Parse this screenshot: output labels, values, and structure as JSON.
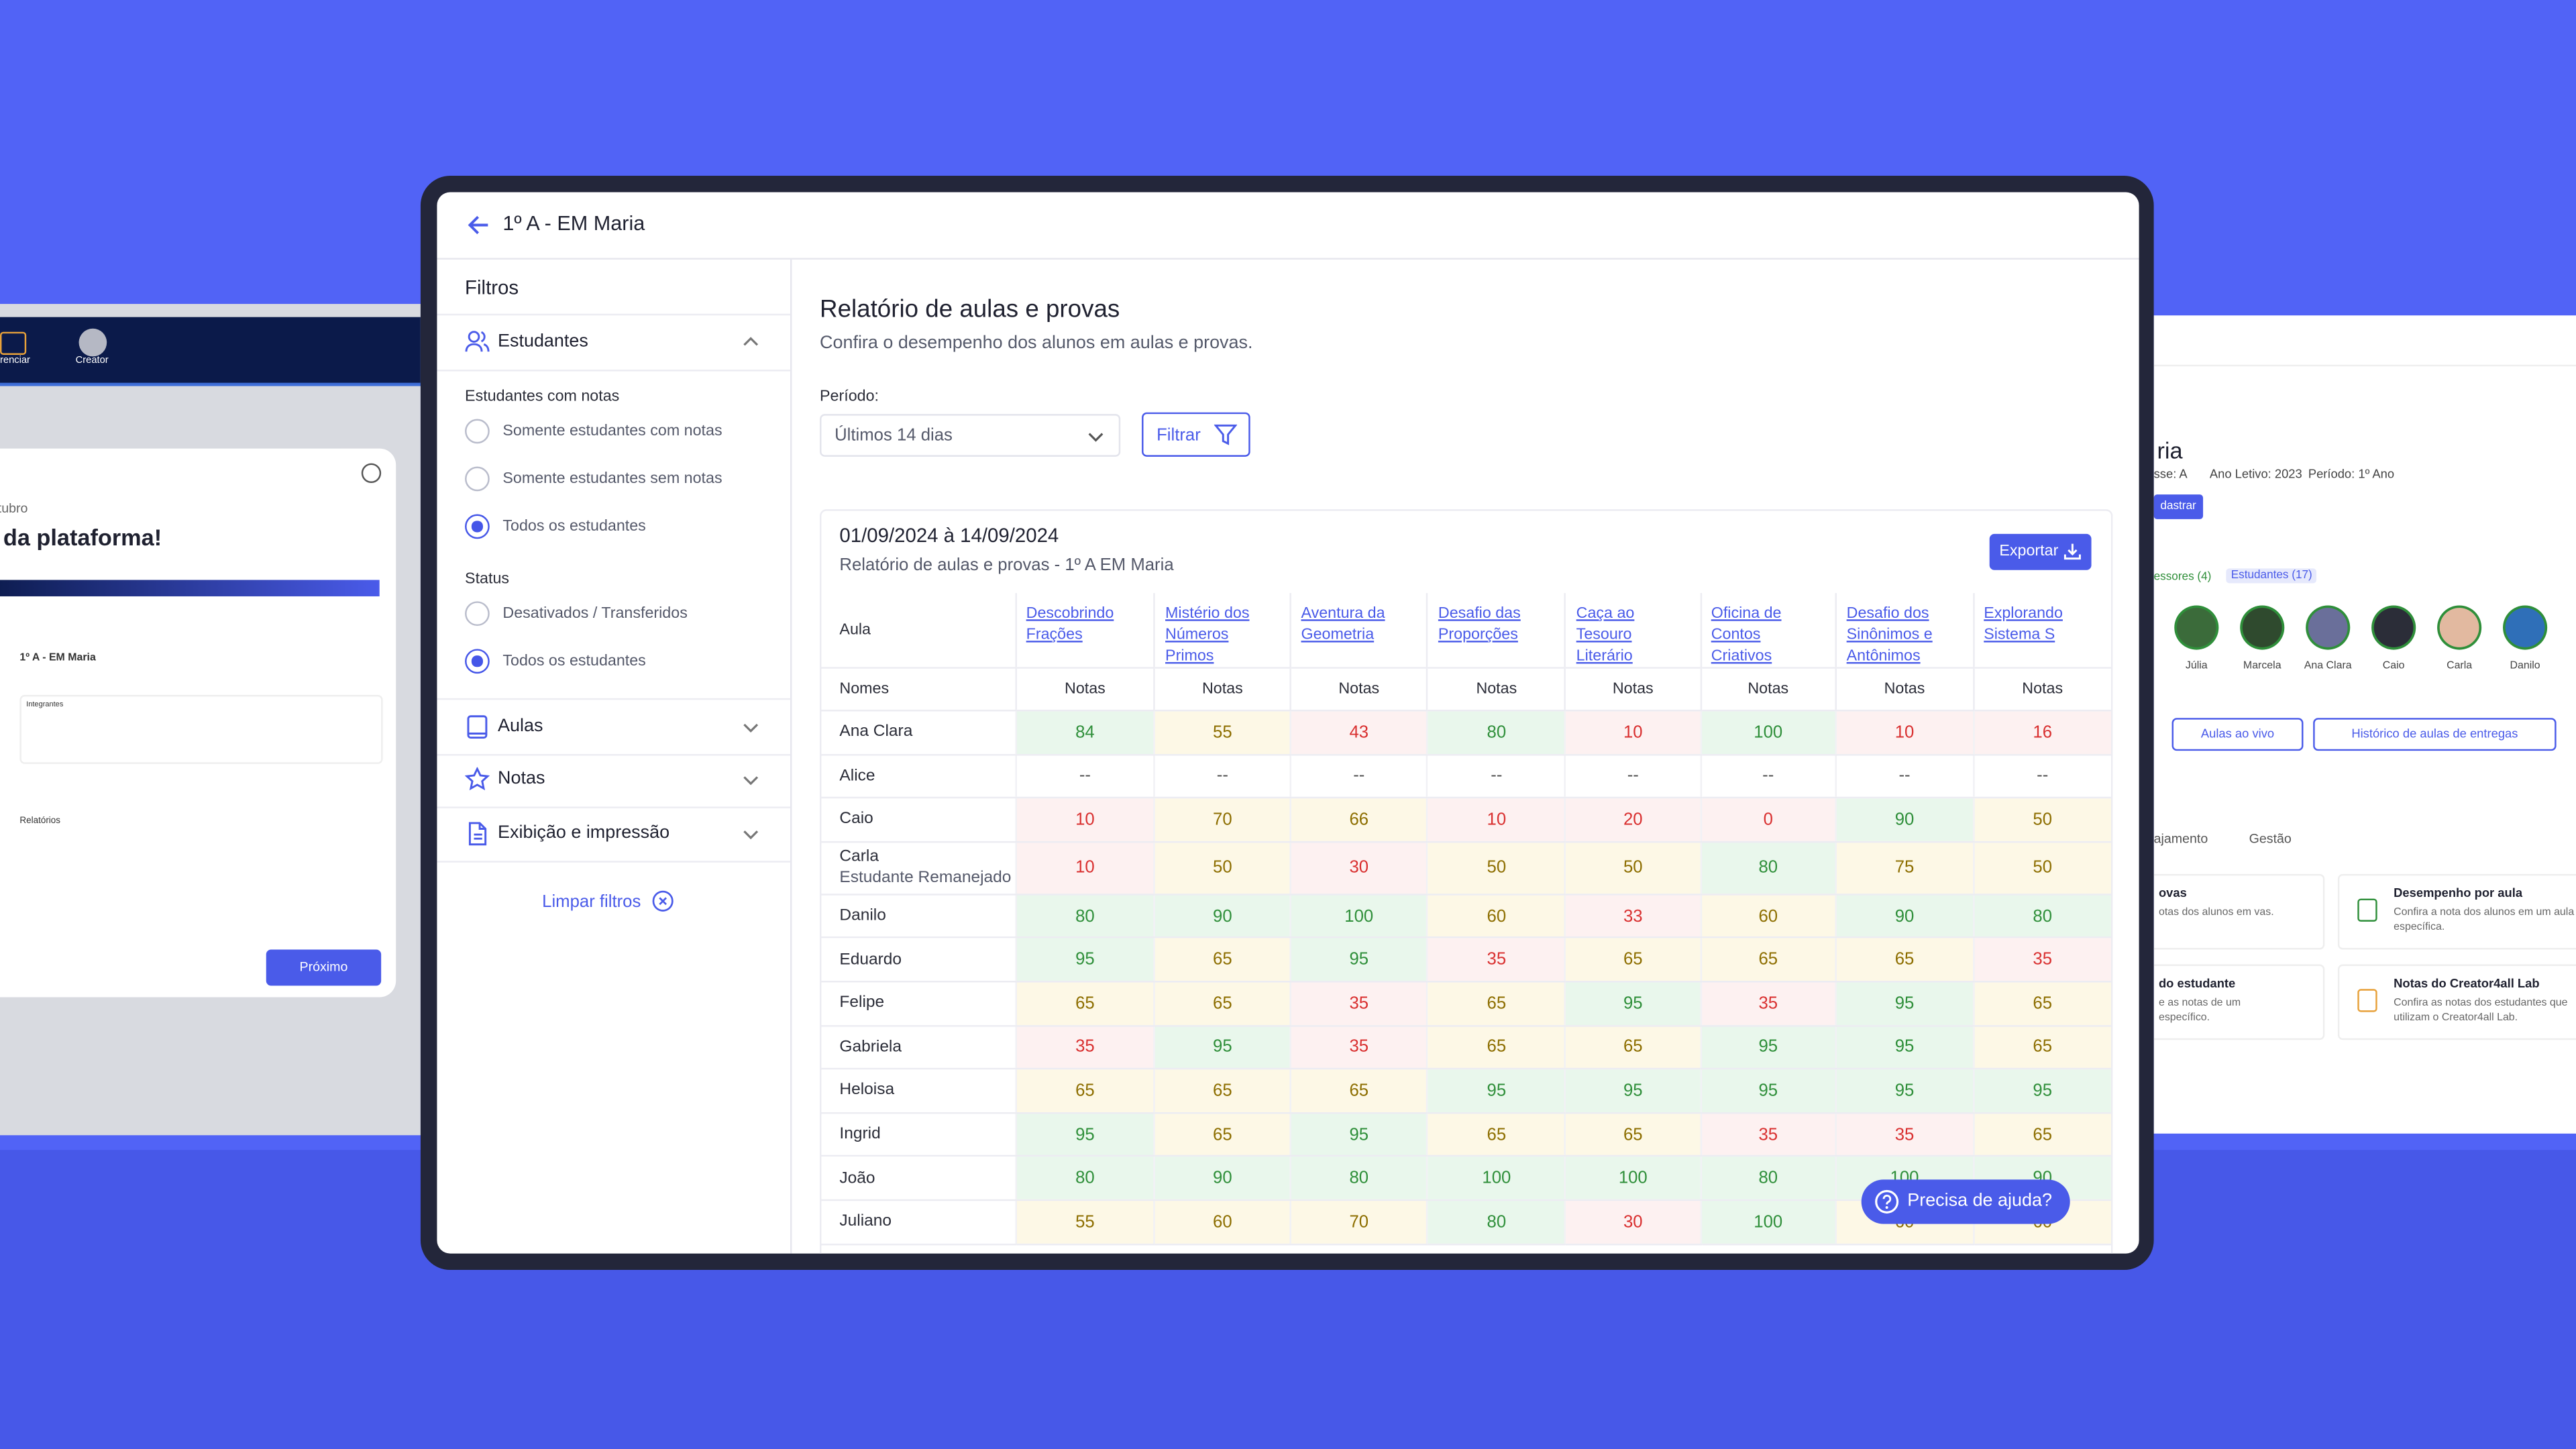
{
  "header": {
    "title": "1º A - EM Maria"
  },
  "sidebar": {
    "title": "Filtros",
    "students_label": "Estudantes",
    "group1_label": "Estudantes com notas",
    "group1_options": [
      "Somente estudantes com notas",
      "Somente estudantes sem notas",
      "Todos os estudantes"
    ],
    "group1_selected": 2,
    "group2_label": "Status",
    "group2_options": [
      "Desativados / Transferidos",
      "Todos os estudantes"
    ],
    "group2_selected": 1,
    "sections": [
      "Aulas",
      "Notas",
      "Exibição e impressão"
    ],
    "clear_filters": "Limpar filtros"
  },
  "report": {
    "title": "Relatório de aulas e provas",
    "subtitle": "Confira o desempenho dos alunos em aulas e provas.",
    "period_label": "Período:",
    "period_value": "Últimos 14 dias",
    "filter_button": "Filtrar",
    "date_range": "01/09/2024 à 14/09/2024",
    "card_subtitle": "Relatório de aulas e provas - 1º A EM Maria",
    "export_button": "Exportar"
  },
  "table": {
    "lesson_label": "Aula",
    "names_label": "Nomes",
    "grade_label": "Notas",
    "columns": [
      "Descobrindo Frações",
      "Mistério dos Números Primos",
      "Aventura da Geometria",
      "Desafio das Proporções",
      "Caça ao Tesouro Literário",
      "Oficina de Contos Criativos",
      "Desafio dos Sinônimos e Antônimos",
      "Explorando Sistema S"
    ],
    "rows": [
      {
        "name": "Ana Clara",
        "grades": [
          84,
          55,
          43,
          80,
          10,
          100,
          10,
          16
        ]
      },
      {
        "name": "Alice",
        "grades": [
          "--",
          "--",
          "--",
          "--",
          "--",
          "--",
          "--",
          "--"
        ]
      },
      {
        "name": "Caio",
        "grades": [
          10,
          70,
          66,
          10,
          20,
          0,
          90,
          50
        ]
      },
      {
        "name": "Carla",
        "note": "Estudante Remanejado",
        "grades": [
          10,
          50,
          30,
          50,
          50,
          80,
          75,
          50
        ]
      },
      {
        "name": "Danilo",
        "grades": [
          80,
          90,
          100,
          60,
          33,
          60,
          90,
          80
        ]
      },
      {
        "name": "Eduardo",
        "grades": [
          95,
          65,
          95,
          35,
          65,
          65,
          65,
          35
        ]
      },
      {
        "name": "Felipe",
        "grades": [
          65,
          65,
          35,
          65,
          95,
          35,
          95,
          65
        ]
      },
      {
        "name": "Gabriela",
        "grades": [
          35,
          95,
          35,
          65,
          65,
          95,
          95,
          65
        ]
      },
      {
        "name": "Heloisa",
        "grades": [
          65,
          65,
          65,
          95,
          95,
          95,
          95,
          95
        ]
      },
      {
        "name": "Ingrid",
        "grades": [
          95,
          65,
          95,
          65,
          65,
          35,
          35,
          65
        ]
      },
      {
        "name": "João",
        "grades": [
          80,
          90,
          80,
          100,
          100,
          80,
          100,
          90
        ]
      },
      {
        "name": "Juliano",
        "grades": [
          55,
          60,
          70,
          80,
          30,
          100,
          60,
          60
        ]
      }
    ]
  },
  "help_button": "Precisa de ajuda?",
  "left_mockup": {
    "nav_items": [
      "renciar",
      "Creator"
    ],
    "month": "Outubro",
    "heading": "da plataforma!",
    "mini_title": "1º A - EM Maria",
    "mini_members": "Integrantes",
    "mini_reports": "Relatórios",
    "next_button": "Próximo"
  },
  "right_mockup": {
    "title": "ria",
    "meta": [
      "sse: A",
      "Ano Letivo: 2023",
      "Período: 1º Ano"
    ],
    "register_button": "dastrar",
    "tabs": [
      "essores (4)",
      "Estudantes (17)"
    ],
    "students": [
      "Júlia",
      "Marcela",
      "Ana Clara",
      "Caio",
      "Carla",
      "Danilo"
    ],
    "actions": [
      "Aulas ao vivo",
      "Histórico de aulas de entregas"
    ],
    "report_tabs": [
      "ajamento",
      "Gestão"
    ],
    "cards": [
      {
        "title": "ovas",
        "text": "otas dos alunos em vas."
      },
      {
        "title": "Desempenho por aula",
        "text": "Confira a nota dos alunos em um aula específica."
      },
      {
        "title": "do estudante",
        "text": "e as notas de um específico."
      },
      {
        "title": "Notas do Creator4all Lab",
        "text": "Confira as notas dos estudantes que utilizam o Creator4all Lab."
      }
    ]
  }
}
